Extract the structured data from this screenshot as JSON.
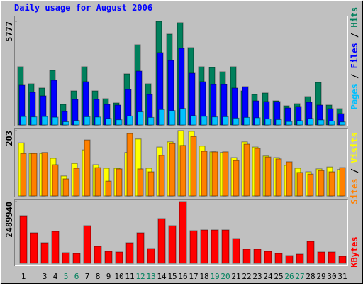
{
  "chart_data": {
    "type": "bar",
    "title": "Daily usage for August 2006",
    "title_color": "#0000ff",
    "categories": [
      "1",
      null,
      "3",
      "4",
      "5",
      "6",
      "7",
      "8",
      "9",
      "10",
      "11",
      "12",
      "13",
      "14",
      "15",
      "16",
      "17",
      "18",
      "19",
      "20",
      "21",
      "22",
      "23",
      "24",
      "25",
      "26",
      "27",
      "28",
      "29",
      "30",
      "31"
    ],
    "category_label_colors": [
      "#000000",
      "#000000",
      "#000000",
      "#000000",
      "#00805c",
      "#00805c",
      "#000000",
      "#000000",
      "#000000",
      "#000000",
      "#000000",
      "#00805c",
      "#00805c",
      "#000000",
      "#000000",
      "#000000",
      "#000000",
      "#000000",
      "#00805c",
      "#00805c",
      "#000000",
      "#000000",
      "#000000",
      "#000000",
      "#000000",
      "#00805c",
      "#00805c",
      "#000000",
      "#000000",
      "#000000",
      "#000000"
    ],
    "legend_separator": " / ",
    "panels": [
      {
        "ylim": [
          0,
          5777
        ],
        "yticks": [
          5777
        ],
        "series": [
          {
            "name": "Hits",
            "color": "#00805c",
            "values": [
              3245,
              2295,
              2058,
              3047,
              1147,
              1899,
              3245,
              1899,
              1464,
              1227,
              2849,
              4471,
              2295,
              5777,
              5065,
              5700,
              4313,
              3245,
              3205,
              2968,
              3245,
              1899,
              1701,
              1781,
              1345,
              1068,
              1187,
              1583,
              2374,
              1108,
              910
            ]
          },
          {
            "name": "Files",
            "color": "#0000ff",
            "values": [
              2216,
              1820,
              1622,
              2493,
              752,
              1424,
              2414,
              1424,
              1147,
              1108,
              1978,
              3007,
              1701,
              4036,
              3601,
              4273,
              2888,
              2414,
              2255,
              2255,
              2058,
              2137,
              1345,
              1306,
              1306,
              950,
              1029,
              1266,
              1108,
              910,
              633
            ]
          },
          {
            "name": "Pages",
            "color": "#00c0ff",
            "values": [
              470,
              450,
              470,
              430,
              180,
              250,
              460,
              440,
              360,
              290,
              500,
              730,
              420,
              860,
              800,
              920,
              520,
              480,
              450,
              460,
              380,
              420,
              400,
              330,
              300,
              190,
              240,
              360,
              280,
              220,
              170
            ]
          }
        ]
      },
      {
        "ylim": [
          0,
          203
        ],
        "yticks": [
          203
        ],
        "series": [
          {
            "name": "Visits",
            "color": "#ffff00",
            "values": [
              165,
              132,
              132,
              117,
              62,
              101,
              143,
              97,
              86,
              86,
              135,
              177,
              86,
              152,
              168,
              203,
              201,
              155,
              137,
              135,
              119,
              168,
              152,
              124,
              119,
              95,
              86,
              75,
              84,
              90,
              82
            ]
          },
          {
            "name": "Sites",
            "color": "#ff8000",
            "values": [
              132,
              132,
              135,
              97,
              53,
              86,
              174,
              88,
              46,
              84,
              194,
              84,
              75,
              126,
              163,
              157,
              185,
              139,
              137,
              137,
              110,
              161,
              148,
              121,
              115,
              106,
              73,
              68,
              79,
              75,
              88
            ]
          }
        ]
      },
      {
        "ylim": [
          0,
          2489940
        ],
        "yticks": [
          2489940
        ],
        "series": [
          {
            "name": "KBytes",
            "color": "#ff0000",
            "values": [
              1917600,
              1230700,
              830000,
              1287900,
              429300,
              400700,
              1516800,
              686900,
              486500,
              457900,
              830000,
              1230700,
              601000,
              1803000,
              1516800,
              2489940,
              1316500,
              1345100,
              1345100,
              1345100,
              1001700,
              572400,
              572400,
              486500,
              400700,
              314800,
              372000,
              887200,
              457900,
              457900,
              286200
            ]
          }
        ]
      }
    ]
  }
}
